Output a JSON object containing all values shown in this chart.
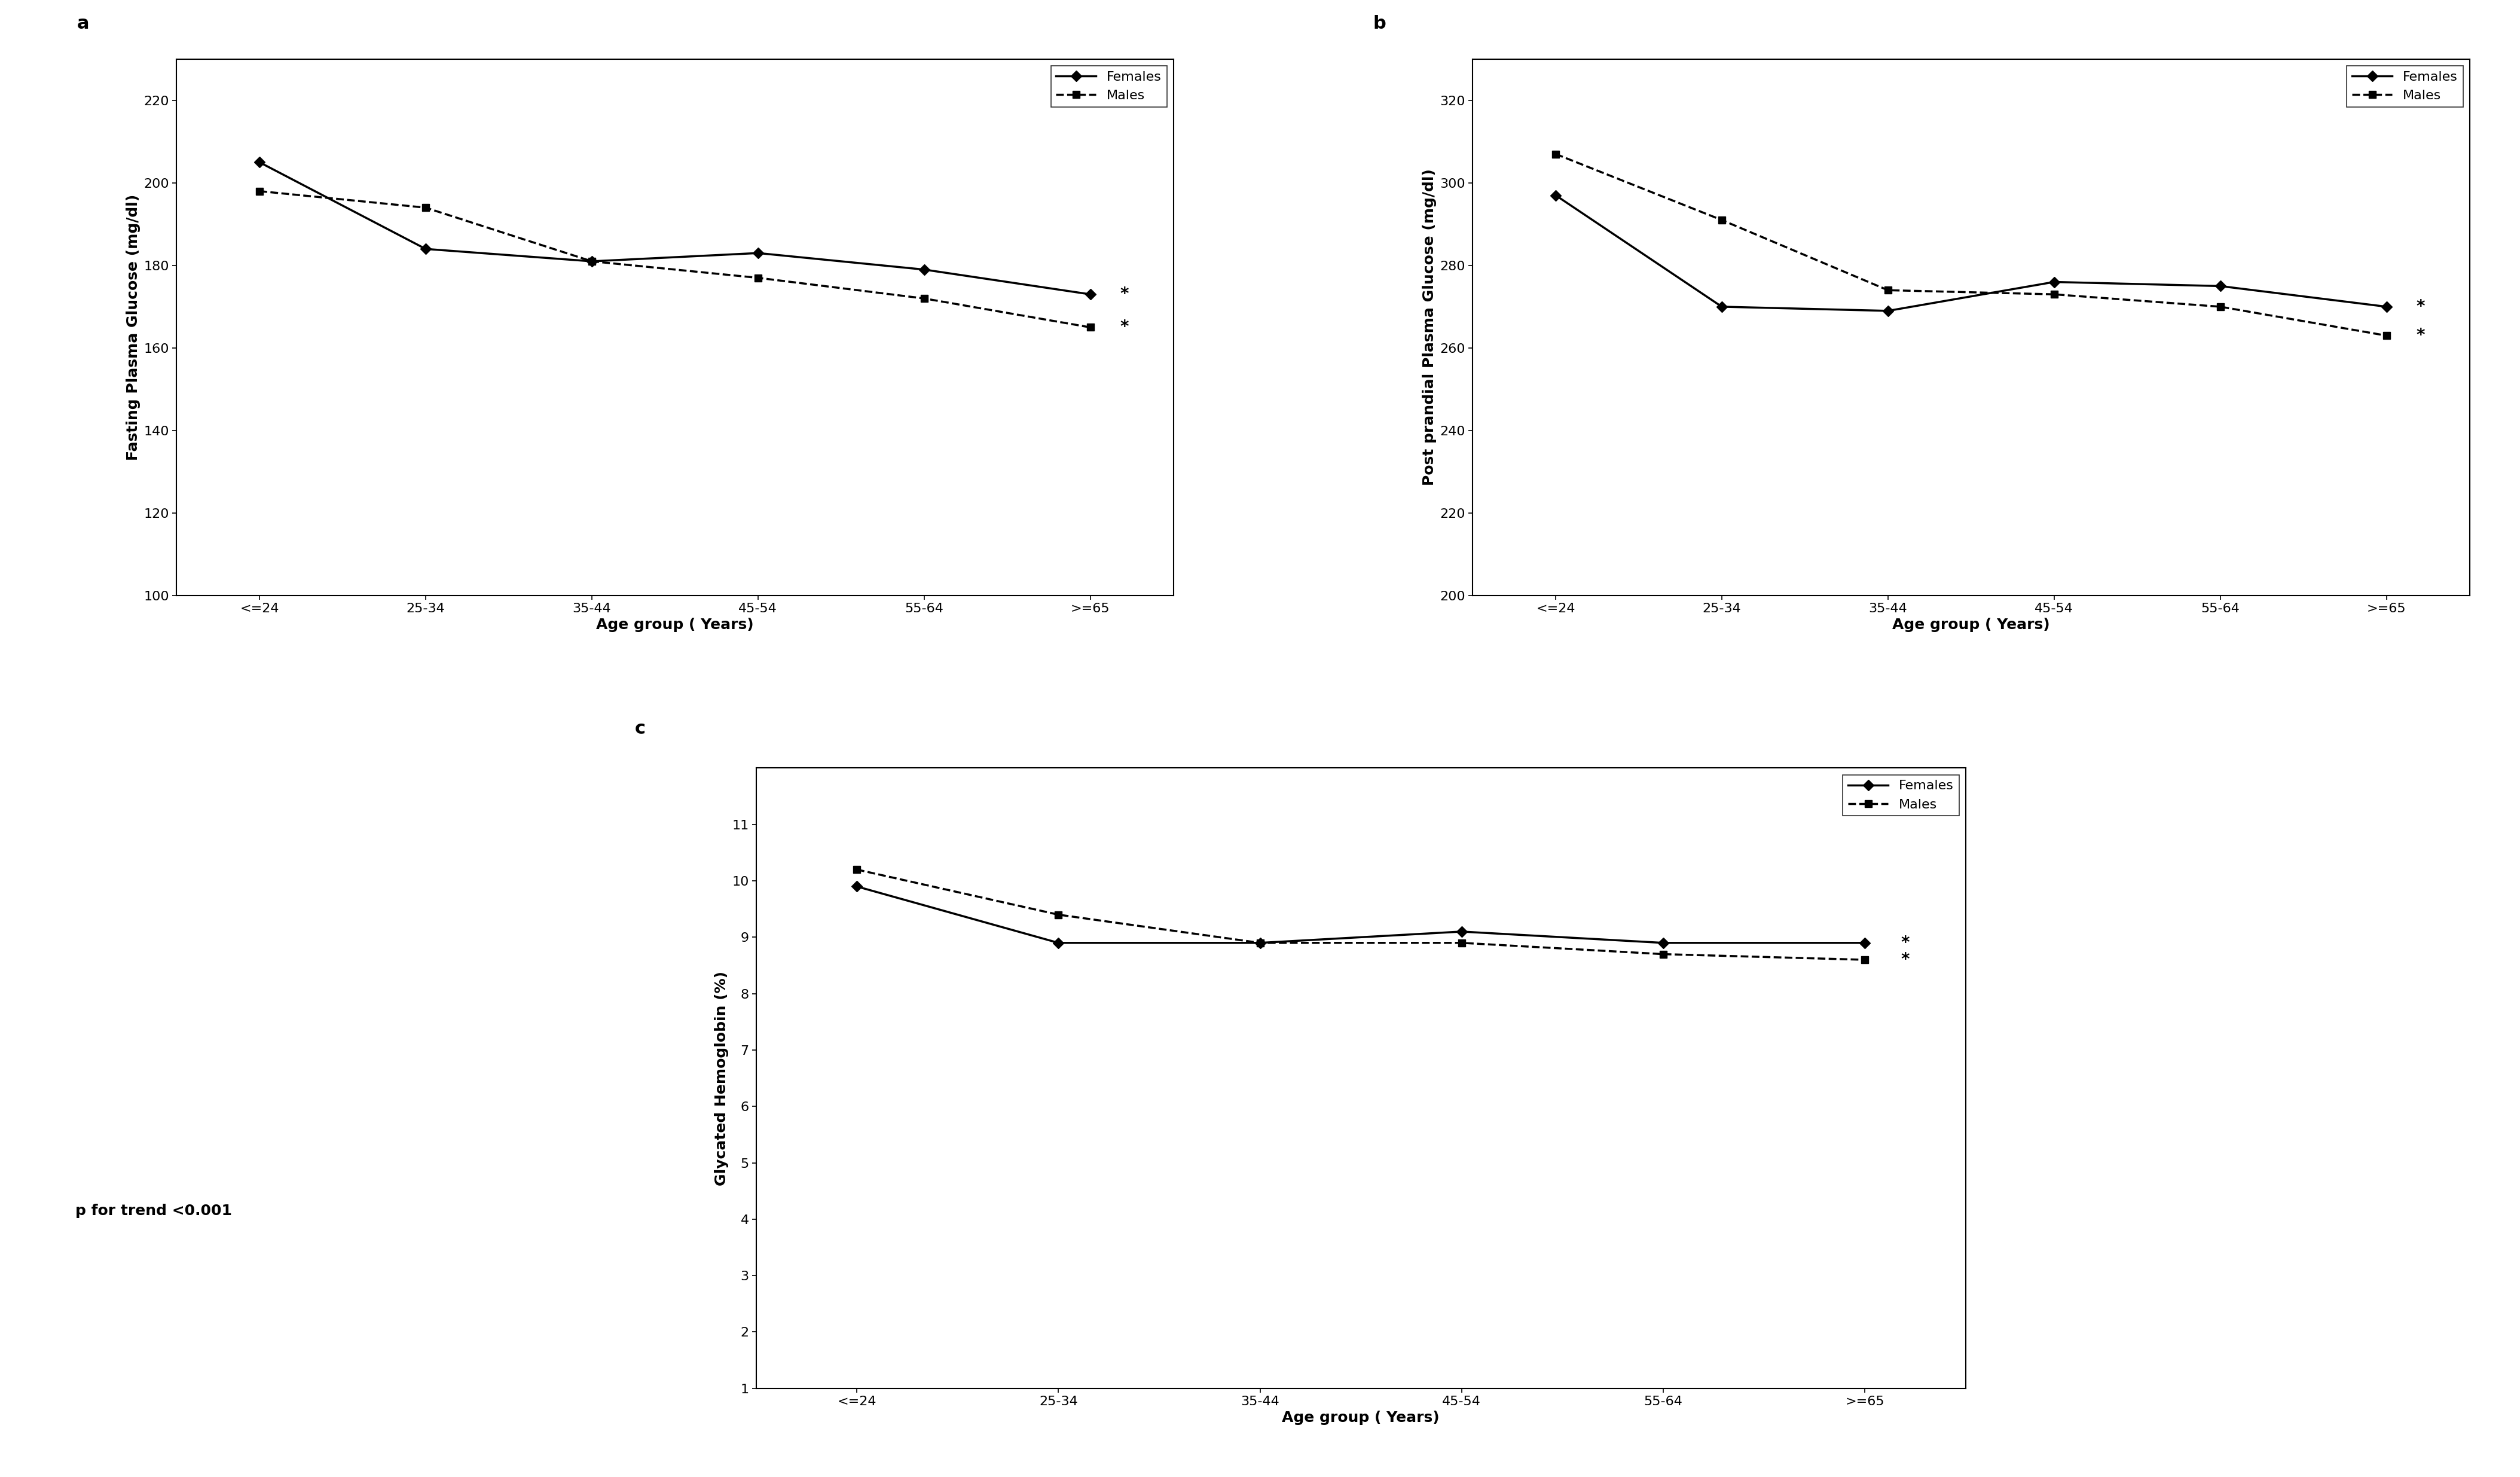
{
  "age_groups": [
    "<=24",
    "25-34",
    "35-44",
    "45-54",
    "55-64",
    ">=65"
  ],
  "panel_a": {
    "title": "a",
    "ylabel": "Fasting Plasma Glucose (mg/dl)",
    "xlabel": "Age group ( Years)",
    "ylim": [
      100,
      230
    ],
    "yticks": [
      100,
      120,
      140,
      160,
      180,
      200,
      220
    ],
    "females": [
      205,
      184,
      181,
      183,
      179,
      173
    ],
    "males": [
      198,
      194,
      181,
      177,
      172,
      165
    ]
  },
  "panel_b": {
    "title": "b",
    "ylabel": "Post prandial Plasma Glucose (mg/dl)",
    "xlabel": "Age group ( Years)",
    "ylim": [
      200,
      330
    ],
    "yticks": [
      200,
      220,
      240,
      260,
      280,
      300,
      320
    ],
    "females": [
      297,
      270,
      269,
      276,
      275,
      270
    ],
    "males": [
      307,
      291,
      274,
      273,
      270,
      263
    ]
  },
  "panel_c": {
    "title": "c",
    "ylabel": "Glycated Hemoglobin (%)",
    "xlabel": "Age group ( Years)",
    "ylim": [
      1,
      12
    ],
    "yticks": [
      1,
      2,
      3,
      4,
      5,
      6,
      7,
      8,
      9,
      10,
      11
    ],
    "females": [
      9.9,
      8.9,
      8.9,
      9.1,
      8.9,
      8.9
    ],
    "males": [
      10.2,
      9.4,
      8.9,
      8.9,
      8.7,
      8.6
    ]
  },
  "p_trend_text": "p for trend <0.001",
  "line_color": "#000000",
  "female_marker": "D",
  "male_marker": "s",
  "linewidth": 2.5,
  "markersize": 9,
  "legend_females": "Females",
  "legend_males": "Males",
  "fontsize_label": 18,
  "fontsize_tick": 16,
  "fontsize_legend": 16,
  "fontsize_panel_label": 22,
  "fontsize_ptrend": 18,
  "fontsize_star": 20
}
